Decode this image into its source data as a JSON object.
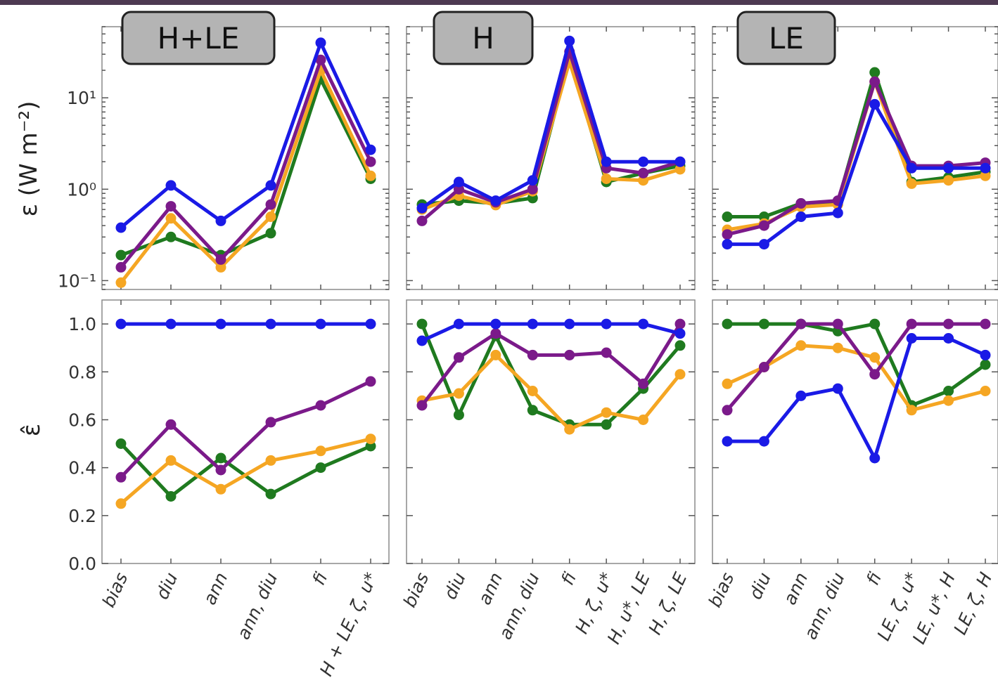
{
  "colors": {
    "green": "#1f7a1f",
    "orange": "#f5a623",
    "purple": "#7b1a8a",
    "blue": "#1a1ae6",
    "title_box": "#b4b4b4"
  },
  "axis_labels": {
    "top_ylabel": "ε (W m⁻²)",
    "bottom_ylabel": "ε̂"
  },
  "chart_data": [
    {
      "type": "line",
      "title": "H+LE",
      "row": "top",
      "yscale": "log",
      "ylim": [
        0.08,
        60
      ],
      "yticks": [
        0.1,
        1,
        10
      ],
      "ytick_labels": [
        "10⁻¹",
        "10⁰",
        "10¹"
      ],
      "categories": [
        "bias",
        "diu",
        "ann",
        "ann, diu",
        "fi",
        "H + LE, ζ, u*"
      ],
      "series": [
        {
          "color": "green",
          "values": [
            0.19,
            0.3,
            0.19,
            0.33,
            16,
            1.3
          ]
        },
        {
          "color": "orange",
          "values": [
            0.095,
            0.48,
            0.14,
            0.5,
            20,
            1.4
          ]
        },
        {
          "color": "purple",
          "values": [
            0.14,
            0.65,
            0.17,
            0.68,
            26,
            2.0
          ]
        },
        {
          "color": "blue",
          "values": [
            0.38,
            1.1,
            0.45,
            1.1,
            40,
            2.7
          ]
        }
      ]
    },
    {
      "type": "line",
      "title": "H",
      "row": "top",
      "yscale": "log",
      "ylim": [
        0.08,
        60
      ],
      "categories": [
        "bias",
        "diu",
        "ann",
        "ann, diu",
        "fi",
        "H, ζ, u*",
        "H, u*, LE",
        "H, ζ, LE"
      ],
      "series": [
        {
          "color": "green",
          "values": [
            0.68,
            0.75,
            0.7,
            0.8,
            28,
            1.2,
            1.5,
            1.8
          ]
        },
        {
          "color": "orange",
          "values": [
            0.6,
            0.85,
            0.67,
            0.95,
            25,
            1.3,
            1.25,
            1.65
          ]
        },
        {
          "color": "purple",
          "values": [
            0.45,
            1.0,
            0.72,
            1.0,
            32,
            1.7,
            1.5,
            2.0
          ]
        },
        {
          "color": "blue",
          "values": [
            0.62,
            1.2,
            0.75,
            1.25,
            42,
            2.0,
            2.0,
            2.0
          ]
        }
      ]
    },
    {
      "type": "line",
      "title": "LE",
      "row": "top",
      "yscale": "log",
      "ylim": [
        0.08,
        60
      ],
      "categories": [
        "bias",
        "diu",
        "ann",
        "ann, diu",
        "fi",
        "LE, ζ, u*",
        "LE, u*, H",
        "LE, ζ, H"
      ],
      "series": [
        {
          "color": "green",
          "values": [
            0.5,
            0.5,
            0.7,
            0.72,
            19,
            1.2,
            1.35,
            1.55
          ]
        },
        {
          "color": "orange",
          "values": [
            0.36,
            0.42,
            0.64,
            0.68,
            15,
            1.15,
            1.25,
            1.4
          ]
        },
        {
          "color": "purple",
          "values": [
            0.32,
            0.4,
            0.7,
            0.75,
            15,
            1.8,
            1.8,
            1.95
          ]
        },
        {
          "color": "blue",
          "values": [
            0.25,
            0.25,
            0.5,
            0.55,
            8.5,
            1.7,
            1.7,
            1.7
          ]
        }
      ]
    },
    {
      "type": "line",
      "row": "bottom",
      "yscale": "linear",
      "ylim": [
        0,
        1.1
      ],
      "yticks": [
        0.0,
        0.2,
        0.4,
        0.6,
        0.8,
        1.0
      ],
      "ytick_labels": [
        "0.0",
        "0.2",
        "0.4",
        "0.6",
        "0.8",
        "1.0"
      ],
      "categories": [
        "bias",
        "diu",
        "ann",
        "ann, diu",
        "fi",
        "H + LE, ζ, u*"
      ],
      "series": [
        {
          "color": "green",
          "values": [
            0.5,
            0.28,
            0.44,
            0.29,
            0.4,
            0.49
          ]
        },
        {
          "color": "orange",
          "values": [
            0.25,
            0.43,
            0.31,
            0.43,
            0.47,
            0.52
          ]
        },
        {
          "color": "purple",
          "values": [
            0.36,
            0.58,
            0.39,
            0.59,
            0.66,
            0.76
          ]
        },
        {
          "color": "blue",
          "values": [
            1.0,
            1.0,
            1.0,
            1.0,
            1.0,
            1.0
          ]
        }
      ]
    },
    {
      "type": "line",
      "row": "bottom",
      "yscale": "linear",
      "ylim": [
        0,
        1.1
      ],
      "categories": [
        "bias",
        "diu",
        "ann",
        "ann, diu",
        "fi",
        "H, ζ, u*",
        "H, u*, LE",
        "H, ζ, LE"
      ],
      "series": [
        {
          "color": "green",
          "values": [
            1.0,
            0.62,
            0.95,
            0.64,
            0.58,
            0.58,
            0.73,
            0.91
          ]
        },
        {
          "color": "orange",
          "values": [
            0.68,
            0.71,
            0.87,
            0.72,
            0.56,
            0.63,
            0.6,
            0.79
          ]
        },
        {
          "color": "purple",
          "values": [
            0.66,
            0.86,
            0.96,
            0.87,
            0.87,
            0.88,
            0.75,
            1.0
          ]
        },
        {
          "color": "blue",
          "values": [
            0.93,
            1.0,
            1.0,
            1.0,
            1.0,
            1.0,
            1.0,
            0.96
          ]
        }
      ]
    },
    {
      "type": "line",
      "row": "bottom",
      "yscale": "linear",
      "ylim": [
        0,
        1.1
      ],
      "categories": [
        "bias",
        "diu",
        "ann",
        "ann, diu",
        "fi",
        "LE, ζ, u*",
        "LE, u*, H",
        "LE, ζ, H"
      ],
      "series": [
        {
          "color": "green",
          "values": [
            1.0,
            1.0,
            1.0,
            0.97,
            1.0,
            0.66,
            0.72,
            0.83
          ]
        },
        {
          "color": "orange",
          "values": [
            0.75,
            0.82,
            0.91,
            0.9,
            0.86,
            0.64,
            0.68,
            0.72
          ]
        },
        {
          "color": "purple",
          "values": [
            0.64,
            0.82,
            1.0,
            1.0,
            0.79,
            1.0,
            1.0,
            1.0
          ]
        },
        {
          "color": "blue",
          "values": [
            0.51,
            0.51,
            0.7,
            0.73,
            0.44,
            0.94,
            0.94,
            0.87
          ]
        }
      ]
    }
  ]
}
